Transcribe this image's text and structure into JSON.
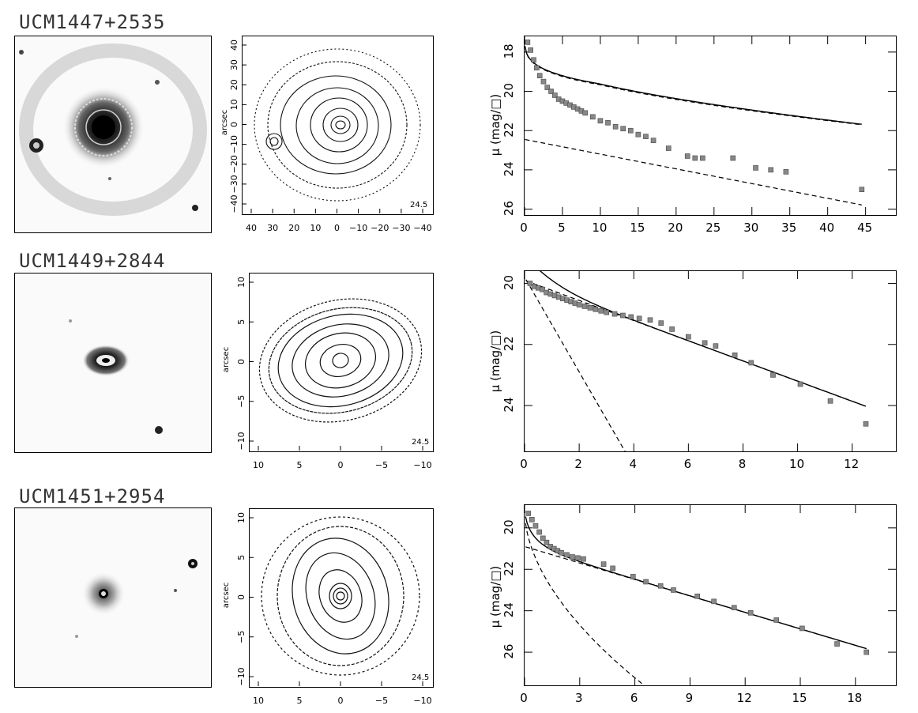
{
  "galaxies": [
    {
      "name": "UCM1447+2535",
      "contour": {
        "ylabel": "arcsec",
        "level": "24.5",
        "yticks": [
          "40",
          "30",
          "20",
          "10",
          "0",
          "−10",
          "−20",
          "−30",
          "−40"
        ],
        "xticks": [
          "40",
          "30",
          "20",
          "10",
          "0",
          "−10",
          "−20",
          "−30",
          "−40"
        ]
      },
      "profile": {
        "ylabel": "μ (mag/□)",
        "xticks": [
          "0",
          "5",
          "10",
          "15",
          "20",
          "25",
          "30",
          "35",
          "40",
          "45"
        ],
        "yticks": [
          "18",
          "20",
          "22",
          "24",
          "26"
        ],
        "xlim": [
          0,
          49
        ],
        "ylim": [
          26.3,
          17.2
        ],
        "points_x": [
          0.4,
          0.8,
          1.2,
          1.6,
          2,
          2.5,
          3,
          3.5,
          4,
          4.5,
          5,
          5.5,
          6,
          6.5,
          7,
          7.5,
          8,
          9,
          10,
          11,
          12,
          13,
          14,
          15,
          16,
          17,
          19,
          21.5,
          22.5,
          23.5,
          27.5,
          30.5,
          32.5,
          34.5,
          44.5
        ],
        "points_y": [
          17.5,
          17.9,
          18.4,
          18.8,
          19.2,
          19.5,
          19.8,
          20.0,
          20.2,
          20.4,
          20.5,
          20.6,
          20.7,
          20.8,
          20.9,
          21.0,
          21.1,
          21.3,
          21.5,
          21.6,
          21.8,
          21.9,
          22.0,
          22.2,
          22.3,
          22.5,
          22.9,
          23.3,
          23.4,
          23.4,
          23.4,
          23.9,
          24.0,
          24.1,
          25.0
        ]
      }
    },
    {
      "name": "UCM1449+2844",
      "contour": {
        "ylabel": "arcsec",
        "level": "24.5",
        "yticks": [
          "10",
          "5",
          "0",
          "−5",
          "−10"
        ],
        "xticks": [
          "10",
          "5",
          "0",
          "−5",
          "−10"
        ]
      },
      "profile": {
        "ylabel": "μ (mag/□)",
        "xticks": [
          "0",
          "2",
          "4",
          "6",
          "8",
          "10",
          "12"
        ],
        "yticks": [
          "20",
          "22",
          "24"
        ],
        "xlim": [
          0,
          13.6
        ],
        "ylim": [
          25.5,
          19.6
        ],
        "points_x": [
          0.2,
          0.35,
          0.5,
          0.65,
          0.8,
          0.95,
          1.1,
          1.25,
          1.4,
          1.55,
          1.7,
          1.85,
          2.0,
          2.2,
          2.4,
          2.6,
          2.8,
          3.0,
          3.3,
          3.6,
          3.9,
          4.2,
          4.6,
          5.0,
          5.4,
          6.0,
          6.6,
          7.0,
          7.7,
          8.3,
          9.1,
          10.1,
          11.2,
          12.5
        ],
        "points_y": [
          20.0,
          20.1,
          20.15,
          20.2,
          20.3,
          20.35,
          20.4,
          20.45,
          20.5,
          20.55,
          20.6,
          20.65,
          20.7,
          20.75,
          20.8,
          20.85,
          20.9,
          20.95,
          21.0,
          21.05,
          21.1,
          21.15,
          21.2,
          21.3,
          21.5,
          21.75,
          21.95,
          22.05,
          22.35,
          22.6,
          23.0,
          23.3,
          23.85,
          24.6
        ]
      }
    },
    {
      "name": "UCM1451+2954",
      "contour": {
        "ylabel": "arcsec",
        "level": "24.5",
        "yticks": [
          "10",
          "5",
          "0",
          "−5",
          "−10"
        ],
        "xticks": [
          "10",
          "5",
          "0",
          "−5",
          "−10"
        ]
      },
      "profile": {
        "ylabel": "μ (mag/□)",
        "xticks": [
          "0",
          "3",
          "6",
          "9",
          "12",
          "15",
          "18"
        ],
        "yticks": [
          "20",
          "22",
          "24",
          "26"
        ],
        "xlim": [
          0,
          20.2
        ],
        "ylim": [
          27.6,
          18.9
        ],
        "points_x": [
          0.2,
          0.4,
          0.6,
          0.8,
          1.0,
          1.2,
          1.4,
          1.6,
          1.8,
          2.0,
          2.3,
          2.6,
          2.9,
          3.2,
          4.3,
          4.8,
          5.9,
          6.6,
          7.4,
          8.1,
          9.4,
          10.3,
          11.4,
          12.3,
          13.7,
          15.1,
          17.0,
          18.6
        ],
        "points_y": [
          19.3,
          19.6,
          19.9,
          20.2,
          20.5,
          20.7,
          20.9,
          21.0,
          21.1,
          21.2,
          21.3,
          21.4,
          21.45,
          21.5,
          21.75,
          21.95,
          22.35,
          22.6,
          22.8,
          23.0,
          23.3,
          23.55,
          23.85,
          24.1,
          24.45,
          24.85,
          25.6,
          26.0
        ]
      }
    }
  ]
}
